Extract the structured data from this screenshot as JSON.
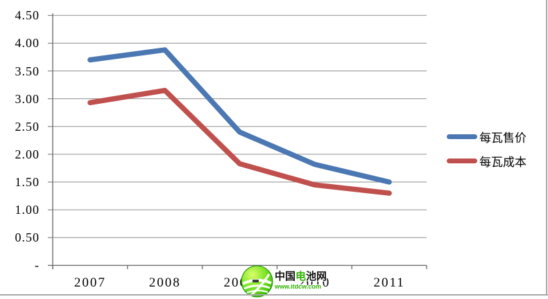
{
  "chart_data": {
    "type": "line",
    "categories": [
      "2007",
      "2008",
      "2009",
      "2010",
      "2011"
    ],
    "series": [
      {
        "name": "每瓦售价",
        "color": "#4B78B3",
        "values": [
          3.7,
          3.88,
          2.4,
          1.82,
          1.5
        ]
      },
      {
        "name": "每瓦成本",
        "color": "#C0504D",
        "values": [
          2.93,
          3.15,
          1.83,
          1.45,
          1.3
        ]
      }
    ],
    "ylim": [
      0,
      4.5
    ],
    "ytick_step": 0.5,
    "ytick_labels_top_down": [
      "4.50",
      "4.00",
      "3.50",
      "3.00",
      "2.50",
      "2.00",
      "1.50",
      "1.00",
      "0.50",
      "-"
    ],
    "grid": true,
    "legend_position": "right-middle",
    "xlabel": "",
    "ylabel": "",
    "title": ""
  },
  "watermark": {
    "name_prefix": "中国",
    "name_highlight": "电",
    "name_suffix": "池网",
    "url": "www.itdcw.com",
    "logo": "green-sphere-swoosh-logo",
    "green": "#2db200"
  },
  "colors": {
    "background": "#ffffff",
    "grid": "#8f8f8f",
    "axis": "#6f6f6f",
    "text": "#000000",
    "frame": "#a6a6a6"
  }
}
